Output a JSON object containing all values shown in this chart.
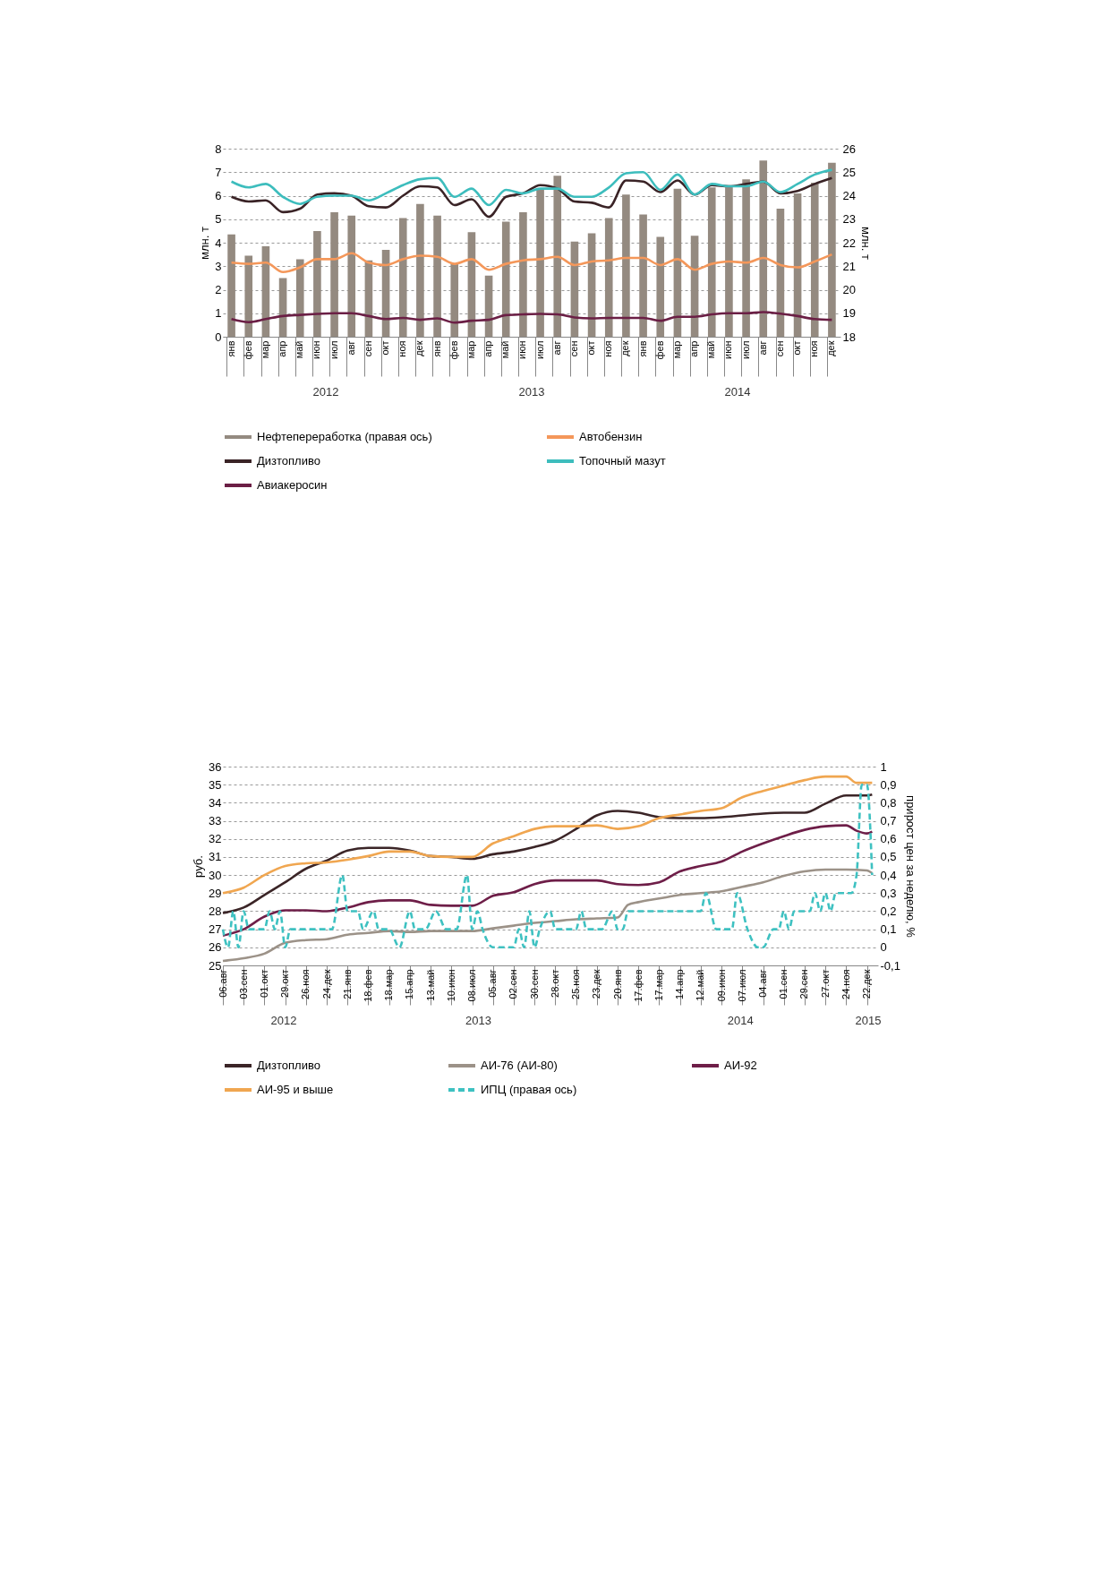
{
  "chart_data": [
    {
      "type": "bar",
      "ylabel": "млн. т",
      "y2label": "млн. т",
      "grid": "y",
      "legend": "bottom",
      "categories": [
        "янв",
        "фев",
        "мар",
        "апр",
        "май",
        "июн",
        "июл",
        "авг",
        "сен",
        "окт",
        "ноя",
        "дек",
        "янв",
        "фев",
        "мар",
        "апр",
        "май",
        "июн",
        "июл",
        "авг",
        "сен",
        "окт",
        "ноя",
        "дек",
        "янв",
        "фев",
        "мар",
        "апр",
        "май",
        "июн",
        "июл",
        "авг",
        "сен",
        "окт",
        "ноя",
        "дек"
      ],
      "ylim": [
        0,
        8
      ],
      "yticks": [
        0,
        1,
        2,
        3,
        4,
        5,
        6,
        7,
        8
      ],
      "y2lim": [
        18,
        26
      ],
      "y2ticks": [
        18,
        19,
        20,
        21,
        22,
        23,
        24,
        25,
        26
      ],
      "annotations": [
        "2012",
        "2013",
        "2014"
      ],
      "series": [
        {
          "name": "Нефтепереработка (правая ось)",
          "type": "bar",
          "axis": "y2",
          "color": "#948a80",
          "values": [
            22.35,
            21.45,
            21.85,
            20.5,
            21.3,
            22.5,
            23.3,
            23.15,
            21.25,
            21.7,
            23.05,
            23.65,
            23.15,
            21.1,
            22.45,
            20.6,
            22.9,
            23.3,
            24.3,
            24.85,
            22.05,
            22.4,
            23.05,
            24.05,
            23.2,
            22.25,
            24.3,
            22.3,
            24.35,
            24.35,
            24.7,
            25.5,
            23.45,
            24.1,
            24.55,
            25.4
          ]
        },
        {
          "name": "Автобензин",
          "type": "line",
          "color": "#f4975a",
          "values": [
            3.15,
            3.1,
            3.15,
            2.75,
            2.95,
            3.3,
            3.3,
            3.55,
            3.15,
            3.05,
            3.3,
            3.45,
            3.4,
            3.1,
            3.3,
            2.85,
            3.1,
            3.25,
            3.3,
            3.4,
            3.05,
            3.2,
            3.25,
            3.35,
            3.35,
            3.05,
            3.3,
            2.85,
            3.1,
            3.2,
            3.15,
            3.35,
            3.05,
            2.95,
            3.2,
            3.5
          ]
        },
        {
          "name": "Дизтопливо",
          "type": "line",
          "color": "#3a2326",
          "values": [
            5.95,
            5.75,
            5.8,
            5.3,
            5.45,
            6.05,
            6.1,
            6.0,
            5.55,
            5.5,
            6.0,
            6.4,
            6.35,
            5.6,
            5.85,
            5.1,
            5.95,
            6.1,
            6.45,
            6.3,
            5.75,
            5.7,
            5.5,
            6.65,
            6.6,
            6.15,
            6.65,
            6.05,
            6.45,
            6.4,
            6.5,
            6.6,
            6.1,
            6.2,
            6.5,
            6.75
          ]
        },
        {
          "name": "Топочный мазут",
          "type": "line",
          "color": "#3dbdbd",
          "values": [
            6.6,
            6.35,
            6.5,
            5.95,
            5.65,
            5.95,
            6.0,
            6.0,
            5.8,
            6.1,
            6.45,
            6.7,
            6.75,
            5.95,
            6.3,
            5.6,
            6.25,
            6.1,
            6.3,
            6.3,
            5.95,
            5.95,
            6.35,
            6.95,
            7.0,
            6.25,
            6.9,
            6.05,
            6.5,
            6.4,
            6.4,
            6.6,
            6.15,
            6.5,
            6.9,
            7.1
          ]
        },
        {
          "name": "Авиакеросин",
          "type": "line",
          "color": "#6b1f45",
          "values": [
            0.75,
            0.62,
            0.75,
            0.88,
            0.93,
            0.97,
            1.0,
            1.0,
            0.88,
            0.75,
            0.8,
            0.72,
            0.78,
            0.6,
            0.68,
            0.72,
            0.92,
            0.95,
            0.97,
            0.95,
            0.82,
            0.78,
            0.8,
            0.8,
            0.8,
            0.68,
            0.85,
            0.85,
            0.95,
            1.0,
            1.0,
            1.05,
            0.98,
            0.88,
            0.75,
            0.72
          ]
        }
      ]
    },
    {
      "type": "line",
      "ylabel": "руб.",
      "y2label": "прирост цен за неделю, %",
      "grid": "y",
      "legend": "bottom",
      "xlim": [
        "2012-08-06",
        "2015-01-06"
      ],
      "xticks": [
        {
          "value": "2012-08-06",
          "label": "06.авг"
        },
        {
          "value": "2012-09-03",
          "label": "03.сен"
        },
        {
          "value": "2012-10-01",
          "label": "01.окт"
        },
        {
          "value": "2012-10-29",
          "label": "29.окт"
        },
        {
          "value": "2012-11-26",
          "label": "26.ноя"
        },
        {
          "value": "2012-12-24",
          "label": "24.дек"
        },
        {
          "value": "2013-01-21",
          "label": "21.янв"
        },
        {
          "value": "2013-02-18",
          "label": "18.фев"
        },
        {
          "value": "2013-03-18",
          "label": "18.мар"
        },
        {
          "value": "2013-04-15",
          "label": "15.апр"
        },
        {
          "value": "2013-05-13",
          "label": "13.май"
        },
        {
          "value": "2013-06-10",
          "label": "10.июн"
        },
        {
          "value": "2013-07-08",
          "label": "08.июл"
        },
        {
          "value": "2013-08-05",
          "label": "05.авг"
        },
        {
          "value": "2013-09-02",
          "label": "02.сен"
        },
        {
          "value": "2013-09-30",
          "label": "30.сен"
        },
        {
          "value": "2013-10-28",
          "label": "28.окт"
        },
        {
          "value": "2013-11-25",
          "label": "25.ноя"
        },
        {
          "value": "2013-12-23",
          "label": "23.дек"
        },
        {
          "value": "2014-01-20",
          "label": "20.янв"
        },
        {
          "value": "2014-02-17",
          "label": "17.фев"
        },
        {
          "value": "2014-03-17",
          "label": "17.мар"
        },
        {
          "value": "2014-04-14",
          "label": "14.апр"
        },
        {
          "value": "2014-05-12",
          "label": "12.май"
        },
        {
          "value": "2014-06-09",
          "label": "09.июн"
        },
        {
          "value": "2014-07-07",
          "label": "07.июл"
        },
        {
          "value": "2014-08-04",
          "label": "04.авг"
        },
        {
          "value": "2014-09-01",
          "label": "01.сен"
        },
        {
          "value": "2014-09-29",
          "label": "29.сен"
        },
        {
          "value": "2014-10-27",
          "label": "27.окт"
        },
        {
          "value": "2014-11-24",
          "label": "24.ноя"
        },
        {
          "value": "2014-12-22",
          "label": "22.дек"
        }
      ],
      "ylim": [
        25,
        36
      ],
      "yticks": [
        25,
        26,
        27,
        28,
        29,
        30,
        31,
        32,
        33,
        34,
        35,
        36
      ],
      "y2lim": [
        -0.1,
        1
      ],
      "y2ticks": [
        {
          "value": -0.1,
          "label": "-0,1"
        },
        0,
        {
          "value": 0.1,
          "label": "0,1"
        },
        {
          "value": 0.2,
          "label": "0,2"
        },
        {
          "value": 0.3,
          "label": "0,3"
        },
        {
          "value": 0.4,
          "label": "0,4"
        },
        {
          "value": 0.5,
          "label": "0,5"
        },
        {
          "value": 0.6,
          "label": "0,6"
        },
        {
          "value": 0.7,
          "label": "0,7"
        },
        {
          "value": 0.8,
          "label": "0,8"
        },
        {
          "value": 0.9,
          "label": "0,9"
        },
        1
      ],
      "annotations": [
        "2012",
        "2013",
        "2014",
        "2015"
      ],
      "series": [
        {
          "name": "Дизтопливо",
          "color": "#3b2527",
          "x": [
            "2012-08-06",
            "2012-09-03",
            "2012-10-01",
            "2012-10-29",
            "2012-11-26",
            "2012-12-24",
            "2013-01-21",
            "2013-02-18",
            "2013-03-18",
            "2013-04-15",
            "2013-05-13",
            "2013-06-10",
            "2013-07-08",
            "2013-08-05",
            "2013-09-02",
            "2013-09-30",
            "2013-10-28",
            "2013-11-25",
            "2013-12-23",
            "2014-01-20",
            "2014-02-17",
            "2014-03-17",
            "2014-04-14",
            "2014-05-12",
            "2014-06-09",
            "2014-07-07",
            "2014-08-04",
            "2014-09-01",
            "2014-09-29",
            "2014-10-27",
            "2014-11-24",
            "2014-12-22",
            "2014-12-29"
          ],
          "values": [
            27.9,
            28.2,
            28.9,
            29.6,
            30.35,
            30.8,
            31.35,
            31.5,
            31.5,
            31.35,
            31.05,
            31.0,
            30.9,
            31.15,
            31.3,
            31.55,
            31.9,
            32.55,
            33.3,
            33.55,
            33.45,
            33.2,
            33.15,
            33.15,
            33.2,
            33.3,
            33.4,
            33.45,
            33.45,
            33.95,
            34.4,
            34.4,
            34.45
          ]
        },
        {
          "name": "АИ-76 (АИ-80)",
          "color": "#9c9288",
          "x": [
            "2012-08-06",
            "2012-09-03",
            "2012-10-01",
            "2012-10-29",
            "2012-11-26",
            "2012-12-24",
            "2013-01-21",
            "2013-02-18",
            "2013-03-18",
            "2013-04-15",
            "2013-05-13",
            "2013-06-10",
            "2013-07-08",
            "2013-08-05",
            "2013-09-02",
            "2013-09-30",
            "2013-10-28",
            "2013-11-25",
            "2013-12-23",
            "2014-01-20",
            "2014-02-03",
            "2014-02-17",
            "2014-03-17",
            "2014-04-14",
            "2014-05-12",
            "2014-06-09",
            "2014-07-07",
            "2014-08-04",
            "2014-09-01",
            "2014-09-29",
            "2014-10-27",
            "2014-11-24",
            "2014-12-22",
            "2014-12-29"
          ],
          "values": [
            25.25,
            25.4,
            25.65,
            26.25,
            26.4,
            26.45,
            26.7,
            26.8,
            26.9,
            26.85,
            26.9,
            26.9,
            26.9,
            27.05,
            27.2,
            27.35,
            27.45,
            27.55,
            27.6,
            27.65,
            28.35,
            28.5,
            28.7,
            28.9,
            29.0,
            29.1,
            29.35,
            29.6,
            29.95,
            30.2,
            30.3,
            30.3,
            30.25,
            30.1
          ]
        },
        {
          "name": "АИ-92",
          "color": "#6e1e48",
          "x": [
            "2012-08-06",
            "2012-09-03",
            "2012-10-01",
            "2012-10-29",
            "2012-11-26",
            "2012-12-24",
            "2013-01-21",
            "2013-02-18",
            "2013-03-18",
            "2013-04-15",
            "2013-05-13",
            "2013-06-10",
            "2013-07-08",
            "2013-08-05",
            "2013-09-02",
            "2013-09-30",
            "2013-10-28",
            "2013-11-25",
            "2013-12-23",
            "2014-01-20",
            "2014-02-17",
            "2014-03-17",
            "2014-04-14",
            "2014-05-12",
            "2014-06-09",
            "2014-07-07",
            "2014-08-04",
            "2014-09-01",
            "2014-09-29",
            "2014-10-27",
            "2014-11-24",
            "2014-12-08",
            "2014-12-22",
            "2014-12-29"
          ],
          "values": [
            26.65,
            27.0,
            27.7,
            28.05,
            28.05,
            28.0,
            28.2,
            28.5,
            28.6,
            28.6,
            28.35,
            28.3,
            28.3,
            28.85,
            29.05,
            29.5,
            29.7,
            29.7,
            29.7,
            29.5,
            29.45,
            29.6,
            30.2,
            30.5,
            30.75,
            31.3,
            31.75,
            32.15,
            32.5,
            32.7,
            32.75,
            32.45,
            32.3,
            32.4
          ]
        },
        {
          "name": "АИ-95 и выше",
          "color": "#f0a650",
          "x": [
            "2012-08-06",
            "2012-09-03",
            "2012-10-01",
            "2012-10-29",
            "2012-11-26",
            "2012-12-24",
            "2013-01-21",
            "2013-02-18",
            "2013-03-18",
            "2013-04-15",
            "2013-05-13",
            "2013-06-10",
            "2013-07-08",
            "2013-08-05",
            "2013-09-02",
            "2013-09-30",
            "2013-10-28",
            "2013-11-25",
            "2013-12-23",
            "2014-01-20",
            "2014-02-17",
            "2014-03-17",
            "2014-04-14",
            "2014-05-12",
            "2014-06-09",
            "2014-07-07",
            "2014-08-04",
            "2014-09-01",
            "2014-09-29",
            "2014-10-27",
            "2014-11-24",
            "2014-12-08",
            "2014-12-29"
          ],
          "values": [
            29.0,
            29.3,
            30.0,
            30.5,
            30.65,
            30.7,
            30.85,
            31.05,
            31.3,
            31.3,
            31.05,
            31.0,
            31.0,
            31.75,
            32.15,
            32.55,
            32.7,
            32.7,
            32.75,
            32.55,
            32.7,
            33.15,
            33.35,
            33.55,
            33.7,
            34.3,
            34.65,
            34.95,
            35.25,
            35.45,
            35.45,
            35.1,
            35.1
          ]
        },
        {
          "name": "ИПЦ (правая ось)",
          "color": "#3ec1c1",
          "axis": "y2",
          "line_style": "dashed",
          "x": [
            "2012-08-06",
            "2012-08-13",
            "2012-08-20",
            "2012-08-27",
            "2012-09-03",
            "2012-09-10",
            "2012-10-01",
            "2012-10-08",
            "2012-10-15",
            "2012-10-22",
            "2012-10-29",
            "2012-11-05",
            "2012-12-31",
            "2013-01-14",
            "2013-01-21",
            "2013-02-04",
            "2013-02-11",
            "2013-02-25",
            "2013-03-04",
            "2013-03-18",
            "2013-04-01",
            "2013-04-15",
            "2013-04-22",
            "2013-05-06",
            "2013-05-20",
            "2013-06-03",
            "2013-06-17",
            "2013-07-01",
            "2013-07-08",
            "2013-07-15",
            "2013-07-22",
            "2013-08-05",
            "2013-09-02",
            "2013-09-09",
            "2013-09-16",
            "2013-09-23",
            "2013-09-30",
            "2013-10-07",
            "2013-10-21",
            "2013-10-28",
            "2013-11-25",
            "2013-12-02",
            "2013-12-09",
            "2013-12-30",
            "2014-01-13",
            "2014-01-20",
            "2014-01-27",
            "2014-02-03",
            "2014-05-12",
            "2014-05-19",
            "2014-06-02",
            "2014-06-23",
            "2014-06-30",
            "2014-07-14",
            "2014-07-28",
            "2014-08-04",
            "2014-08-18",
            "2014-08-25",
            "2014-09-01",
            "2014-09-08",
            "2014-09-15",
            "2014-10-06",
            "2014-10-13",
            "2014-10-20",
            "2014-10-27",
            "2014-11-03",
            "2014-11-10",
            "2014-12-01",
            "2014-12-08",
            "2014-12-15",
            "2014-12-22",
            "2014-12-29"
          ],
          "values": [
            0.1,
            0,
            0.2,
            0,
            0.2,
            0.1,
            0.1,
            0.2,
            0.1,
            0.2,
            0,
            0.1,
            0.1,
            0.4,
            0.2,
            0.2,
            0.1,
            0.2,
            0.1,
            0.1,
            0,
            0.2,
            0.1,
            0.1,
            0.2,
            0.1,
            0.1,
            0.4,
            0.1,
            0.2,
            0.1,
            0,
            0,
            0.1,
            0,
            0.2,
            0,
            0.1,
            0.2,
            0.1,
            0.1,
            0.2,
            0.1,
            0.1,
            0.2,
            0.1,
            0.1,
            0.2,
            0.2,
            0.3,
            0.1,
            0.1,
            0.3,
            0.1,
            0,
            0,
            0.1,
            0.1,
            0.2,
            0.1,
            0.2,
            0.2,
            0.3,
            0.2,
            0.3,
            0.2,
            0.3,
            0.3,
            0.4,
            0.9,
            0.9,
            0.4
          ]
        }
      ]
    }
  ]
}
